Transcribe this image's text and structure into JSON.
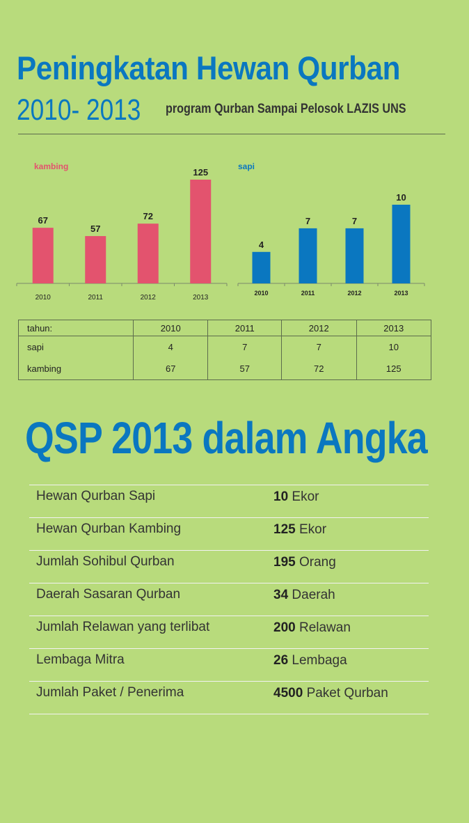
{
  "header": {
    "title": "Peningkatan Hewan Qurban",
    "years": "2010- 2013",
    "subtitle": "program Qurban Sampai Pelosok LAZIS UNS"
  },
  "colors": {
    "kambing": "#e3536e",
    "sapi": "#0a77c0",
    "background": "#b8db7c",
    "heading": "#0a77c0"
  },
  "chart_data": [
    {
      "type": "bar",
      "title": "kambing",
      "categories": [
        "2010",
        "2011",
        "2012",
        "2013"
      ],
      "values": [
        67,
        57,
        72,
        125
      ],
      "ylim": [
        0,
        125
      ],
      "grid": false,
      "color": "#e3536e"
    },
    {
      "type": "bar",
      "title": "sapi",
      "categories": [
        "2010",
        "2011",
        "2012",
        "2013"
      ],
      "values": [
        4,
        7,
        7,
        10
      ],
      "ylim": [
        0,
        10
      ],
      "grid": false,
      "color": "#0a77c0"
    }
  ],
  "table": {
    "header": [
      "tahun:",
      "2010",
      "2011",
      "2012",
      "2013"
    ],
    "rows": [
      [
        "sapi",
        "4",
        "7",
        "7",
        "10"
      ],
      [
        "kambing",
        "67",
        "57",
        "72",
        "125"
      ]
    ]
  },
  "stats": {
    "heading": "QSP 2013 dalam Angka",
    "items": [
      {
        "label": "Hewan Qurban Sapi",
        "value": "10",
        "unit": "Ekor"
      },
      {
        "label": "Hewan Qurban Kambing",
        "value": "125",
        "unit": "Ekor"
      },
      {
        "label": "Jumlah Sohibul Qurban",
        "value": "195",
        "unit": "Orang"
      },
      {
        "label": "Daerah Sasaran Qurban",
        "value": "34",
        "unit": "Daerah"
      },
      {
        "label": "Jumlah Relawan yang terlibat",
        "value": "200",
        "unit": "Relawan"
      },
      {
        "label": "Lembaga Mitra",
        "value": "26",
        "unit": "Lembaga"
      },
      {
        "label": "Jumlah Paket / Penerima",
        "value": "4500",
        "unit": "Paket Qurban"
      }
    ]
  }
}
